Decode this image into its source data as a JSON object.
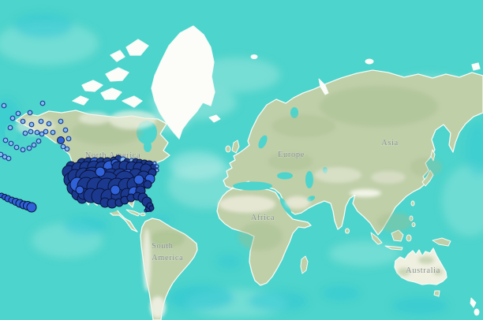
{
  "map": {
    "region_labels": {
      "north_america": {
        "text": "North America"
      },
      "south_america": {
        "line1": "South",
        "line2": "America"
      },
      "europe": {
        "text": "Europe"
      },
      "africa": {
        "text": "Africa"
      },
      "asia": {
        "text": "Asia"
      },
      "australia": {
        "text": "Australia"
      }
    },
    "palette": {
      "ocean": "#4dd4cc",
      "ocean_light": "#9fe8de",
      "ocean_deep": "#28c5d6",
      "land": "#bfcfa8",
      "land_white": "#fcfdf9",
      "coast_fringe": "#f4fbf6",
      "label_gray": "#878f8e"
    },
    "marker_styles": {
      "d": {
        "name": "dark-navy-circle",
        "fill": "#1b3a8f",
        "stroke": "#0a1238",
        "stroke_width": 1
      },
      "b": {
        "name": "bright-blue-circle",
        "fill": "#2f62d9",
        "stroke": "#0a1238",
        "stroke_width": 1
      },
      "l": {
        "name": "light-blue-circle",
        "fill": "#85bdf2",
        "stroke": "#1d3f96",
        "stroke_width": 1.2
      }
    },
    "markers": {
      "alaska_scatter": [
        [
          5,
          134,
          2.8,
          "l"
        ],
        [
          16,
          150,
          2.8,
          "l"
        ],
        [
          23,
          144,
          2.8,
          "l"
        ],
        [
          29,
          154,
          2.8,
          "l"
        ],
        [
          13,
          162,
          2.8,
          "l"
        ],
        [
          7,
          178,
          2.8,
          "l"
        ],
        [
          14,
          182,
          2.8,
          "l"
        ],
        [
          21,
          187,
          2.8,
          "l"
        ],
        [
          29,
          190,
          2.8,
          "l"
        ],
        [
          37,
          188,
          2.8,
          "l"
        ],
        [
          43,
          184,
          2.8,
          "l"
        ],
        [
          49,
          179,
          2.8,
          "l"
        ],
        [
          39,
          167,
          2.8,
          "l"
        ],
        [
          32,
          169,
          2.8,
          "l"
        ],
        [
          47,
          168,
          2.8,
          "l"
        ],
        [
          53,
          170,
          2.8,
          "l"
        ],
        [
          40,
          158,
          2.8,
          "l"
        ],
        [
          52,
          154,
          2.8,
          "l"
        ],
        [
          62,
          157,
          2.8,
          "l"
        ],
        [
          58,
          167,
          2.8,
          "l"
        ],
        [
          67,
          168,
          2.8,
          "l"
        ],
        [
          54,
          131,
          2.8,
          "l"
        ],
        [
          38,
          143,
          2.8,
          "l"
        ],
        [
          77,
          154,
          2.8,
          "l"
        ],
        [
          83,
          165,
          2.8,
          "l"
        ],
        [
          87,
          176,
          2.8,
          "l"
        ],
        [
          80,
          186,
          2.8,
          "l"
        ],
        [
          85,
          189,
          2.8,
          "l"
        ],
        [
          1,
          196,
          2.8,
          "l"
        ],
        [
          6,
          199,
          2.8,
          "l"
        ],
        [
          11,
          201,
          2.8,
          "l"
        ],
        [
          77,
          178,
          4.5,
          "b"
        ]
      ],
      "hawaii_chain": [
        [
          2,
          248,
          3,
          "b"
        ],
        [
          6,
          250,
          3.5,
          "b"
        ],
        [
          10,
          252,
          4,
          "b"
        ],
        [
          15,
          254,
          4,
          "b"
        ],
        [
          20,
          256,
          4.5,
          "b"
        ],
        [
          25,
          258,
          5,
          "b"
        ],
        [
          30,
          260,
          5,
          "b"
        ],
        [
          35,
          261,
          5.5,
          "b"
        ],
        [
          40,
          263,
          6,
          "b"
        ]
      ],
      "caribbean_cluster": [
        [
          186,
          263,
          1.5,
          "l"
        ],
        [
          191,
          267,
          1.5,
          "l"
        ],
        [
          185,
          267,
          2,
          "b"
        ],
        [
          190,
          262,
          1.5,
          "b"
        ],
        [
          188,
          265,
          3.5,
          "d"
        ]
      ],
      "us_cluster": [
        [
          104,
          207,
          6,
          "d"
        ],
        [
          112,
          206,
          6,
          "d"
        ],
        [
          120,
          206,
          6,
          "b"
        ],
        [
          128,
          206,
          6,
          "d"
        ],
        [
          136,
          206,
          6,
          "d"
        ],
        [
          144,
          203,
          4,
          "d"
        ],
        [
          150,
          201,
          4,
          "d"
        ],
        [
          156,
          203,
          4,
          "l"
        ],
        [
          161,
          205,
          4,
          "d"
        ],
        [
          167,
          204,
          3,
          "l"
        ],
        [
          172,
          205,
          4,
          "d"
        ],
        [
          177,
          206,
          4,
          "d"
        ],
        [
          183,
          208,
          5,
          "d"
        ],
        [
          189,
          210,
          6,
          "d"
        ],
        [
          195,
          213,
          5,
          "d"
        ],
        [
          196,
          207,
          2,
          "l"
        ],
        [
          199,
          211,
          2,
          "l"
        ],
        [
          199,
          216,
          2,
          "l"
        ],
        [
          90,
          211,
          6,
          "d"
        ],
        [
          87,
          218,
          8,
          "d"
        ],
        [
          90,
          228,
          9,
          "d"
        ],
        [
          94,
          238,
          9,
          "d"
        ],
        [
          99,
          246,
          8,
          "d"
        ],
        [
          104,
          252,
          6,
          "d"
        ],
        [
          99,
          214,
          8,
          "d"
        ],
        [
          109,
          213,
          8,
          "d"
        ],
        [
          119,
          212,
          8,
          "d"
        ],
        [
          129,
          213,
          8,
          "d"
        ],
        [
          139,
          212,
          8,
          "b"
        ],
        [
          146,
          207,
          5,
          "b"
        ],
        [
          149,
          212,
          7,
          "d"
        ],
        [
          158,
          211,
          7,
          "d"
        ],
        [
          167,
          212,
          7,
          "d"
        ],
        [
          176,
          213,
          7,
          "d"
        ],
        [
          185,
          215,
          7,
          "d"
        ],
        [
          193,
          219,
          5,
          "d"
        ],
        [
          95,
          224,
          9,
          "d"
        ],
        [
          106,
          223,
          10,
          "d"
        ],
        [
          117,
          223,
          11,
          "d"
        ],
        [
          129,
          224,
          11,
          "d"
        ],
        [
          141,
          224,
          10,
          "d"
        ],
        [
          152,
          223,
          9,
          "d"
        ],
        [
          162,
          224,
          9,
          "b"
        ],
        [
          172,
          223,
          9,
          "d"
        ],
        [
          182,
          225,
          8,
          "d"
        ],
        [
          190,
          227,
          6,
          "b"
        ],
        [
          113,
          229,
          13,
          "d"
        ],
        [
          137,
          231,
          13,
          "d"
        ],
        [
          158,
          229,
          12,
          "d"
        ],
        [
          98,
          234,
          9,
          "b"
        ],
        [
          109,
          236,
          11,
          "d"
        ],
        [
          122,
          237,
          12,
          "d"
        ],
        [
          135,
          238,
          12,
          "d"
        ],
        [
          148,
          237,
          11,
          "d"
        ],
        [
          160,
          236,
          10,
          "d"
        ],
        [
          170,
          234,
          9,
          "d"
        ],
        [
          180,
          233,
          7,
          "d"
        ],
        [
          187,
          234,
          5,
          "d"
        ],
        [
          106,
          246,
          7,
          "d"
        ],
        [
          115,
          248,
          9,
          "d"
        ],
        [
          126,
          249,
          10,
          "d"
        ],
        [
          138,
          250,
          10,
          "d"
        ],
        [
          150,
          249,
          9,
          "d"
        ],
        [
          161,
          247,
          8,
          "d"
        ],
        [
          170,
          244,
          7,
          "b"
        ],
        [
          178,
          242,
          6,
          "d"
        ],
        [
          133,
          257,
          6,
          "d"
        ],
        [
          142,
          258,
          6,
          "d"
        ],
        [
          151,
          257,
          5,
          "d"
        ],
        [
          158,
          254,
          5,
          "d"
        ],
        [
          166,
          251,
          5,
          "d"
        ],
        [
          174,
          249,
          5,
          "d"
        ],
        [
          181,
          251,
          6,
          "d"
        ],
        [
          186,
          256,
          6,
          "d"
        ],
        [
          190,
          261,
          4,
          "d"
        ],
        [
          192,
          264,
          3,
          "d"
        ],
        [
          127,
          218,
          6,
          "b"
        ],
        [
          146,
          241,
          6,
          "b"
        ],
        [
          176,
          228,
          6,
          "b"
        ],
        [
          101,
          241,
          5,
          "b"
        ]
      ]
    }
  }
}
